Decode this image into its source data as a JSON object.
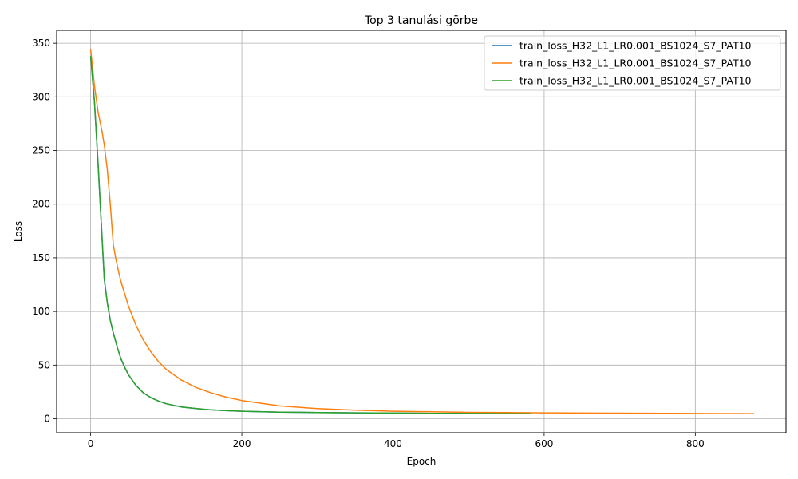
{
  "chart_data": {
    "type": "line",
    "title": "Top 3 tanulási görbe",
    "xlabel": "Epoch",
    "ylabel": "Loss",
    "xlim": [
      -45,
      920
    ],
    "ylim": [
      -13,
      362
    ],
    "xticks": [
      0,
      200,
      400,
      600,
      800
    ],
    "yticks": [
      0,
      50,
      100,
      150,
      200,
      250,
      300,
      350
    ],
    "grid": true,
    "legend_position": "top-right",
    "series": [
      {
        "name": "train_loss_H32_L1_LR0.001_BS1024_S7_PAT10",
        "color": "#1f77b4",
        "x": [
          0,
          5,
          10,
          15,
          18,
          22,
          26,
          30,
          35,
          40,
          45,
          50,
          55,
          60,
          70,
          80,
          90,
          100,
          120,
          140,
          160,
          180,
          200,
          250,
          300,
          350,
          400,
          450,
          500,
          550,
          583
        ],
        "y": [
          338,
          295,
          235,
          170,
          130,
          108,
          92,
          80,
          67,
          56,
          48,
          41,
          36,
          31,
          24,
          19.5,
          16.5,
          14,
          11,
          9.5,
          8.3,
          7.5,
          7,
          6.2,
          5.8,
          5.5,
          5.3,
          5.1,
          4.9,
          4.8,
          4.7
        ]
      },
      {
        "name": "train_loss_H32_L1_LR0.001_BS1024_S7_PAT10",
        "color": "#ff7f0e",
        "x": [
          0,
          5,
          10,
          15,
          18,
          22,
          26,
          30,
          33,
          36,
          40,
          50,
          60,
          70,
          80,
          90,
          100,
          120,
          140,
          160,
          180,
          200,
          250,
          300,
          350,
          400,
          450,
          500,
          600,
          700,
          800,
          878
        ],
        "y": [
          344,
          310,
          285,
          268,
          255,
          232,
          200,
          162,
          150,
          140,
          128,
          105,
          87,
          73,
          62,
          53,
          46,
          36,
          29,
          24,
          20,
          17,
          12,
          9.5,
          8,
          7,
          6.5,
          6,
          5.5,
          5.2,
          4.9,
          4.8
        ]
      },
      {
        "name": "train_loss_H32_L1_LR0.001_BS1024_S7_PAT10",
        "color": "#2ca02c",
        "x": [
          0,
          5,
          10,
          15,
          18,
          22,
          26,
          30,
          35,
          40,
          45,
          50,
          55,
          60,
          70,
          80,
          90,
          100,
          120,
          140,
          160,
          180,
          200,
          250,
          300,
          350,
          400,
          450,
          500,
          550,
          583
        ],
        "y": [
          338,
          295,
          235,
          170,
          130,
          108,
          92,
          80,
          67,
          56,
          48,
          41,
          36,
          31,
          24,
          19.5,
          16.5,
          14,
          11,
          9.5,
          8.3,
          7.5,
          7,
          6.2,
          5.8,
          5.5,
          5.3,
          5.1,
          4.9,
          4.8,
          4.7
        ]
      }
    ]
  }
}
